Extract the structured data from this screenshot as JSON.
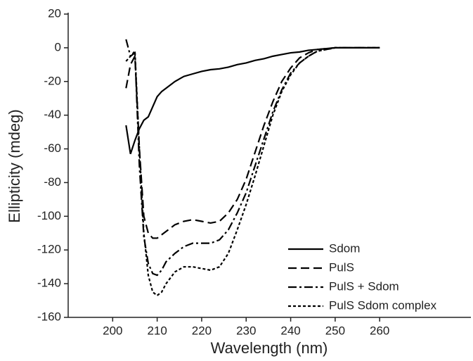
{
  "chart_data": {
    "type": "line",
    "x_label": "Wavelength (nm)",
    "y_label": "Ellipticity (mdeg)",
    "x": [
      203,
      204,
      205,
      206,
      207,
      208,
      209,
      210,
      211,
      212,
      214,
      216,
      218,
      220,
      222,
      224,
      226,
      228,
      230,
      232,
      234,
      236,
      238,
      240,
      242,
      244,
      246,
      248,
      250,
      255,
      260
    ],
    "series": [
      {
        "name": "Sdom",
        "color": "#000000",
        "line_style": "solid",
        "values": [
          -46,
          -63,
          -55,
          -48,
          -43,
          -41,
          -35,
          -29,
          -26,
          -24,
          -20,
          -17,
          -15.5,
          -14,
          -13,
          -12.5,
          -11.5,
          -10,
          -9,
          -7.5,
          -6.5,
          -5,
          -4,
          -3,
          -2.5,
          -1.5,
          -1,
          -0.5,
          0,
          0,
          0
        ]
      },
      {
        "name": "PulS",
        "color": "#000000",
        "line_style": "dashed",
        "values": [
          -24,
          -10,
          -5,
          -60,
          -100,
          -110,
          -113,
          -113,
          -111,
          -109,
          -105,
          -103,
          -102,
          -103,
          -104,
          -103,
          -98,
          -90,
          -78,
          -62,
          -46,
          -32,
          -20,
          -12,
          -6,
          -3,
          -1,
          -0.5,
          0,
          0,
          0
        ]
      },
      {
        "name": "PulS + Sdom",
        "color": "#000000",
        "line_style": "dashdot",
        "values": [
          5,
          -5,
          -3,
          -70,
          -112,
          -128,
          -134,
          -135,
          -132,
          -127,
          -122,
          -118,
          -116,
          -116,
          -116,
          -114,
          -108,
          -98,
          -86,
          -70,
          -54,
          -38,
          -25,
          -15,
          -9,
          -5,
          -2,
          -1,
          0,
          0,
          0
        ]
      },
      {
        "name": "PulS Sdom complex",
        "color": "#000000",
        "line_style": "dotted",
        "values": [
          -8,
          -5,
          -2,
          -60,
          -110,
          -135,
          -145,
          -147,
          -145,
          -140,
          -133,
          -130,
          -130,
          -131,
          -132,
          -130,
          -122,
          -108,
          -93,
          -76,
          -58,
          -40,
          -26,
          -16,
          -9,
          -5,
          -2,
          -1,
          0,
          0,
          0
        ]
      }
    ],
    "xlim": [
      190,
      280.5
    ],
    "xticks": [
      200,
      210,
      220,
      230,
      240,
      250,
      260
    ],
    "ylim": [
      -160,
      20
    ],
    "yticks": [
      -160,
      -140,
      -120,
      -100,
      -80,
      -60,
      -40,
      -20,
      0,
      20
    ],
    "grid": false,
    "legend_position": "lower right"
  }
}
